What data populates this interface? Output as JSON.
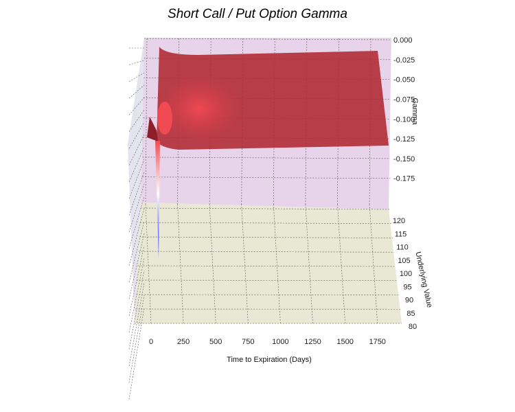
{
  "chart_data": {
    "type": "surface3d",
    "title": "Short Call / Put Option Gamma",
    "xlabel": "Time to Expiration (Days)",
    "ylabel": "Underlying Value",
    "zlabel": "Gamma",
    "x_ticks": [
      "0",
      "250",
      "500",
      "750",
      "1000",
      "1250",
      "1500",
      "1750"
    ],
    "y_ticks": [
      "80",
      "85",
      "90",
      "95",
      "100",
      "105",
      "110",
      "115",
      "120"
    ],
    "z_ticks": [
      "0.000",
      "-0.025",
      "-0.050",
      "-0.075",
      "-0.100",
      "-0.125",
      "-0.150",
      "-0.175"
    ],
    "xlim": [
      0,
      1825
    ],
    "ylim": [
      80,
      120
    ],
    "zlim": [
      -0.19,
      0.0
    ],
    "surface": {
      "strike": 100,
      "min_gamma_near_expiry": -0.19,
      "gamma_long_dated": -0.125,
      "colormap": "bwr"
    },
    "colors": {
      "back_pane": "#e8d4ea",
      "floor_pane": "#e9e8d4",
      "surface": "#b2303a",
      "surface_highlight": "#f24a52"
    }
  }
}
